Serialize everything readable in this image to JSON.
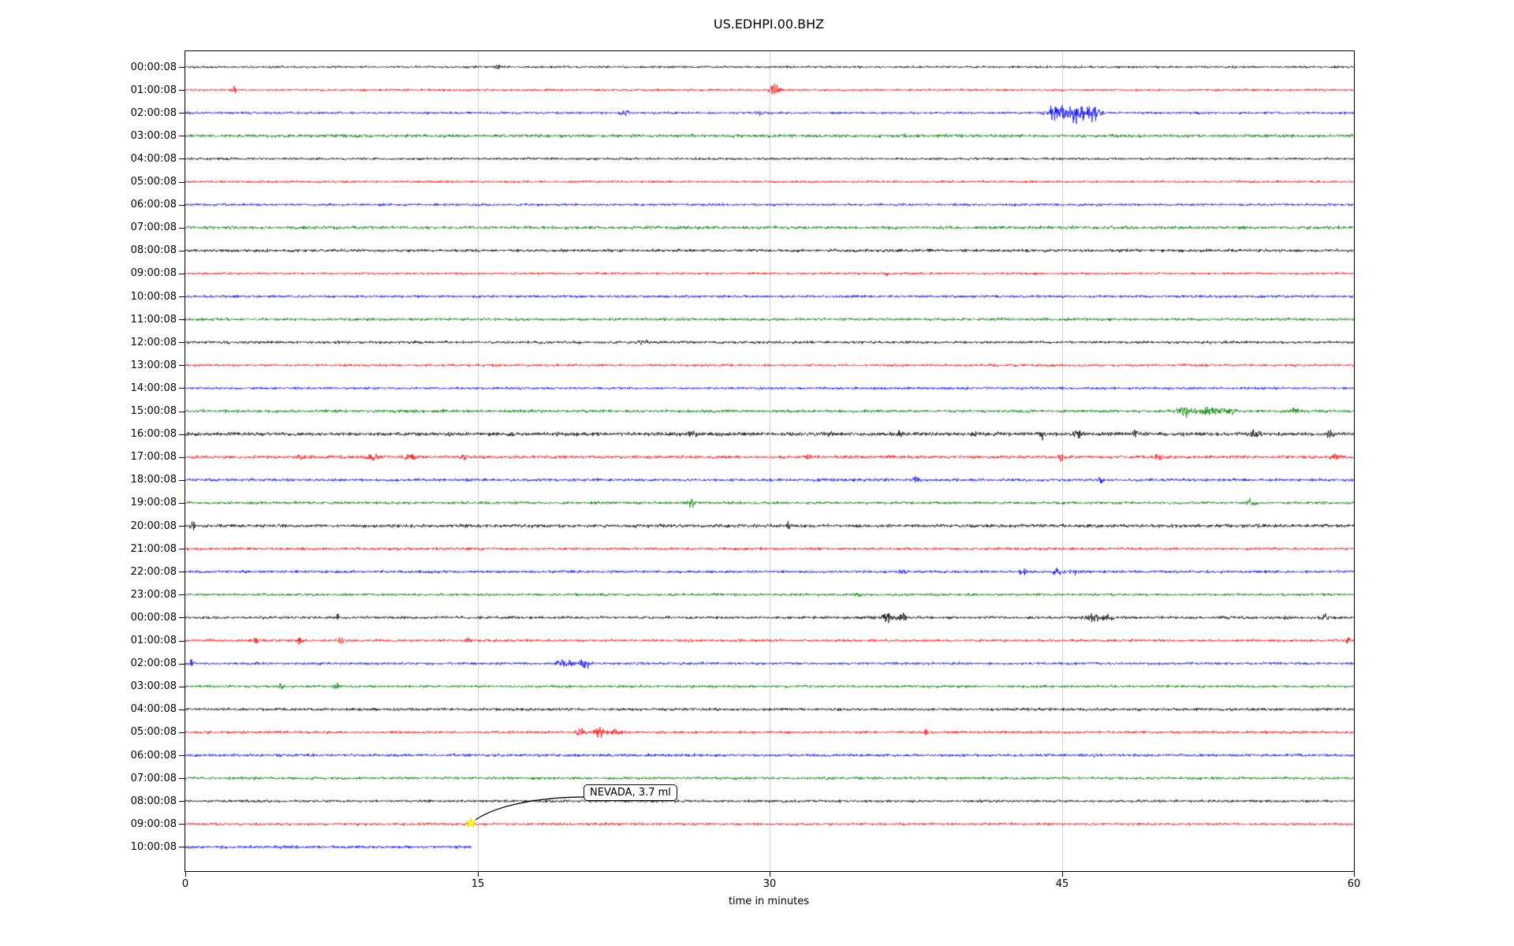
{
  "title": "US.EDHPI.00.BHZ",
  "chart_data": {
    "type": "line",
    "subtype": "helicorder-seismogram",
    "title": "US.EDHPI.00.BHZ",
    "xlabel": "time in minutes",
    "ylabel": "",
    "xlim": [
      0,
      60
    ],
    "x_ticks": [
      0,
      15,
      30,
      45,
      60
    ],
    "grid_minutes": [
      15,
      30,
      45
    ],
    "grid_on": true,
    "grid_color": "#cccccc",
    "frame_color": "#000000",
    "trace_colors": [
      "#000000",
      "#ff0000",
      "#0000ff",
      "#008000"
    ],
    "annotation": {
      "text": "NEVADA, 3.7 ml",
      "row_label": "09:00:08",
      "row_index": 33,
      "minute": 14.7,
      "marker": "star",
      "marker_color": "#ffff00"
    },
    "rows": [
      {
        "label": "00:00:08",
        "color": 0,
        "base": 1.2,
        "events": [
          [
            16,
            2.5,
            0.15
          ]
        ]
      },
      {
        "label": "01:00:08",
        "color": 1,
        "base": 1.2,
        "events": [
          [
            2.5,
            4,
            0.1
          ],
          [
            30.3,
            5,
            0.25
          ]
        ]
      },
      {
        "label": "02:00:08",
        "color": 2,
        "base": 1.2,
        "events": [
          [
            22.6,
            2.5,
            0.2
          ],
          [
            29.5,
            2.5,
            0.2
          ],
          [
            44.8,
            9,
            0.5
          ],
          [
            45.8,
            11,
            0.4
          ],
          [
            46.6,
            6,
            0.4
          ]
        ]
      },
      {
        "label": "03:00:08",
        "color": 3,
        "base": 1.7,
        "events": []
      },
      {
        "label": "04:00:08",
        "color": 0,
        "base": 1.3,
        "events": []
      },
      {
        "label": "05:00:08",
        "color": 1,
        "base": 1.2,
        "events": []
      },
      {
        "label": "06:00:08",
        "color": 2,
        "base": 1.3,
        "events": []
      },
      {
        "label": "07:00:08",
        "color": 3,
        "base": 1.7,
        "events": []
      },
      {
        "label": "08:00:08",
        "color": 0,
        "base": 1.6,
        "events": []
      },
      {
        "label": "09:00:08",
        "color": 1,
        "base": 1.2,
        "events": [
          [
            36,
            4,
            0.08
          ]
        ]
      },
      {
        "label": "10:00:08",
        "color": 2,
        "base": 1.4,
        "events": []
      },
      {
        "label": "11:00:08",
        "color": 3,
        "base": 1.5,
        "events": []
      },
      {
        "label": "12:00:08",
        "color": 0,
        "base": 1.5,
        "events": [
          [
            23.5,
            1.5,
            0.3
          ]
        ]
      },
      {
        "label": "13:00:08",
        "color": 1,
        "base": 1.3,
        "events": []
      },
      {
        "label": "14:00:08",
        "color": 2,
        "base": 1.3,
        "events": []
      },
      {
        "label": "15:00:08",
        "color": 3,
        "base": 1.6,
        "events": [
          [
            51.3,
            6,
            0.4
          ],
          [
            52.5,
            4,
            0.5
          ],
          [
            53.6,
            3,
            0.4
          ],
          [
            57,
            2.5,
            0.3
          ]
        ]
      },
      {
        "label": "16:00:08",
        "color": 0,
        "base": 2.0,
        "events": [
          [
            26,
            3,
            0.2
          ],
          [
            33,
            2.5,
            0.2
          ],
          [
            36.7,
            3.5,
            0.15
          ],
          [
            40.5,
            3,
            0.15
          ],
          [
            44,
            3.5,
            0.2
          ],
          [
            45.8,
            3,
            0.2
          ],
          [
            48.8,
            3,
            0.2
          ],
          [
            55,
            3.5,
            0.2
          ],
          [
            58.8,
            4.5,
            0.15
          ]
        ]
      },
      {
        "label": "17:00:08",
        "color": 1,
        "base": 1.6,
        "events": [
          [
            6,
            2,
            0.3
          ],
          [
            9.6,
            2.5,
            0.3
          ],
          [
            11.5,
            3,
            0.3
          ],
          [
            14.3,
            4,
            0.1
          ],
          [
            32,
            2.5,
            0.15
          ],
          [
            45,
            3,
            0.2
          ],
          [
            50,
            2.5,
            0.2
          ],
          [
            59,
            2.5,
            0.2
          ]
        ]
      },
      {
        "label": "18:00:08",
        "color": 2,
        "base": 1.5,
        "events": [
          [
            37.5,
            3.5,
            0.2
          ],
          [
            47,
            2.5,
            0.15
          ]
        ]
      },
      {
        "label": "19:00:08",
        "color": 3,
        "base": 1.5,
        "events": [
          [
            26,
            3.5,
            0.2
          ],
          [
            54.7,
            3,
            0.25
          ]
        ]
      },
      {
        "label": "20:00:08",
        "color": 0,
        "base": 1.8,
        "events": [
          [
            0.4,
            5.5,
            0.1
          ],
          [
            31,
            3,
            0.2
          ]
        ]
      },
      {
        "label": "21:00:08",
        "color": 1,
        "base": 1.4,
        "events": []
      },
      {
        "label": "22:00:08",
        "color": 2,
        "base": 1.4,
        "events": [
          [
            36.8,
            2,
            0.15
          ],
          [
            43,
            3,
            0.2
          ],
          [
            44.8,
            3.5,
            0.25
          ],
          [
            45.6,
            2.5,
            0.2
          ]
        ]
      },
      {
        "label": "23:00:08",
        "color": 3,
        "base": 1.4,
        "events": [
          [
            34.5,
            2.5,
            0.2
          ]
        ]
      },
      {
        "label": "00:00:08",
        "color": 0,
        "base": 1.5,
        "events": [
          [
            7.8,
            2.5,
            0.15
          ],
          [
            36,
            4,
            0.3
          ],
          [
            36.8,
            4,
            0.3
          ],
          [
            46.6,
            4.5,
            0.35
          ],
          [
            47.4,
            3,
            0.3
          ],
          [
            56.6,
            3,
            0.2
          ],
          [
            58.5,
            3,
            0.2
          ]
        ]
      },
      {
        "label": "01:00:08",
        "color": 1,
        "base": 1.4,
        "events": [
          [
            3.6,
            2.5,
            0.15
          ],
          [
            5.9,
            3,
            0.15
          ],
          [
            8,
            4.5,
            0.12
          ],
          [
            14.5,
            2.5,
            0.1
          ],
          [
            59.7,
            3.5,
            0.1
          ]
        ]
      },
      {
        "label": "02:00:08",
        "color": 2,
        "base": 1.4,
        "events": [
          [
            0.3,
            4.5,
            0.1
          ],
          [
            19.5,
            3.5,
            0.4
          ],
          [
            20.5,
            4.5,
            0.3
          ]
        ]
      },
      {
        "label": "03:00:08",
        "color": 3,
        "base": 1.4,
        "events": [
          [
            4.9,
            3.5,
            0.1
          ],
          [
            7.8,
            2.5,
            0.15
          ]
        ]
      },
      {
        "label": "04:00:08",
        "color": 0,
        "base": 1.5,
        "events": []
      },
      {
        "label": "05:00:08",
        "color": 1,
        "base": 1.4,
        "events": [
          [
            20.3,
            3,
            0.3
          ],
          [
            21.3,
            5.5,
            0.25
          ],
          [
            22,
            3,
            0.3
          ],
          [
            38,
            2.5,
            0.1
          ]
        ]
      },
      {
        "label": "06:00:08",
        "color": 2,
        "base": 1.5,
        "events": []
      },
      {
        "label": "07:00:08",
        "color": 3,
        "base": 1.5,
        "events": []
      },
      {
        "label": "08:00:08",
        "color": 0,
        "base": 1.4,
        "events": []
      },
      {
        "label": "09:00:08",
        "color": 1,
        "base": 1.3,
        "events": []
      },
      {
        "label": "10:00:08",
        "color": 2,
        "base": 1.6,
        "events": [],
        "end": 14.7
      }
    ]
  }
}
